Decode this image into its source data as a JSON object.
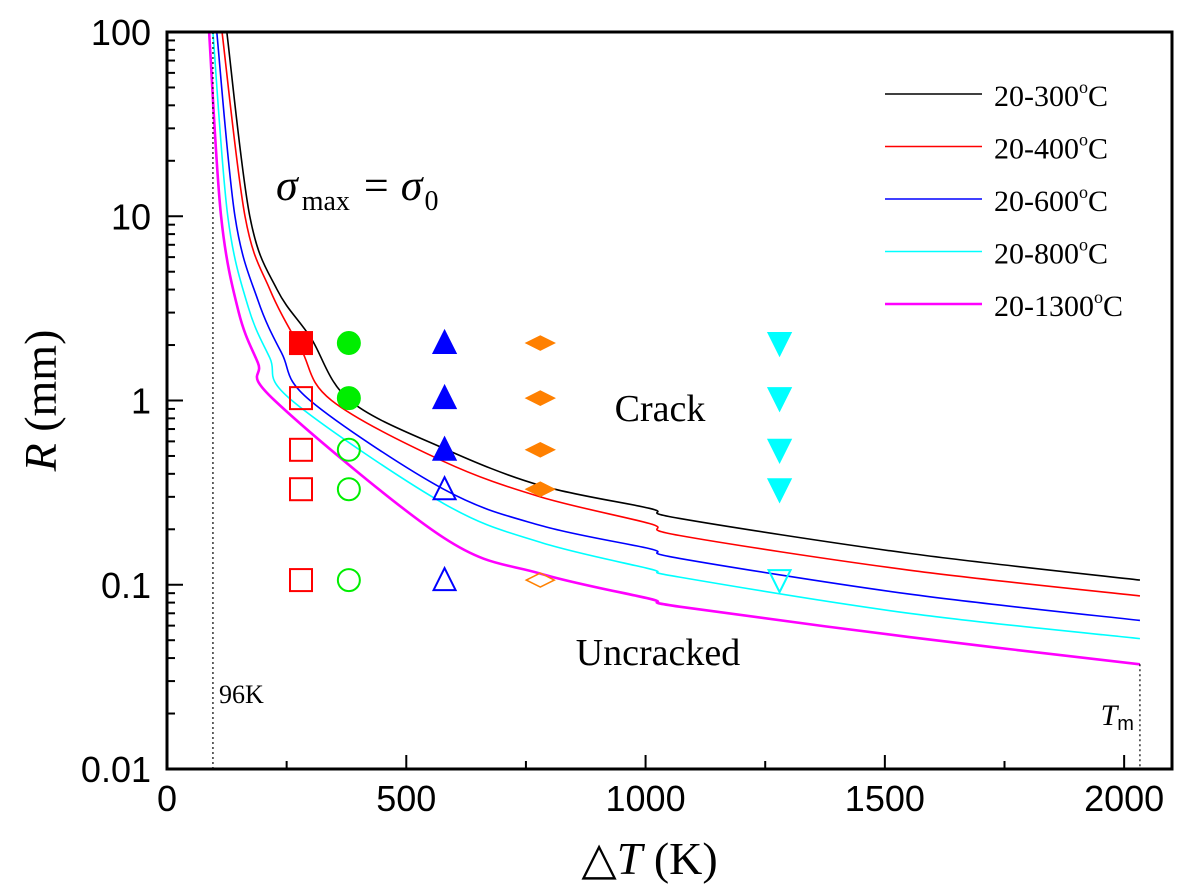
{
  "chart_data": {
    "type": "line",
    "title": "",
    "xlabel": {
      "prefix": "△",
      "var": "T",
      "unit": " (K)"
    },
    "ylabel": {
      "var": "R",
      "unit": " (mm)"
    },
    "xscale": "linear",
    "yscale": "log",
    "xlim": [
      0,
      2100
    ],
    "ylim": [
      0.01,
      100
    ],
    "x_ticks": [
      {
        "value": 0,
        "label": "0"
      },
      {
        "value": 500,
        "label": "500"
      },
      {
        "value": 1000,
        "label": "1000"
      },
      {
        "value": 1500,
        "label": "1500"
      },
      {
        "value": 2000,
        "label": "2000"
      }
    ],
    "x_minor_ticks": [
      250,
      750,
      1250,
      1750
    ],
    "y_ticks": [
      {
        "value": 100,
        "label": "100"
      },
      {
        "value": 10,
        "label": "10"
      },
      {
        "value": 1,
        "label": "1"
      },
      {
        "value": 0.1,
        "label": "0.1"
      },
      {
        "value": 0.01,
        "label": "0.01"
      }
    ],
    "grid": false,
    "legend_position": "top-right",
    "series": [
      {
        "name": "20-300°C",
        "label_main": "20-300",
        "label_unit": "C",
        "color": "#000000",
        "points": [
          [
            125,
            100
          ],
          [
            173,
            10
          ],
          [
            230,
            4
          ],
          [
            300,
            2.2
          ],
          [
            382,
            1
          ],
          [
            578,
            0.55
          ],
          [
            780,
            0.346
          ],
          [
            1008,
            0.26
          ],
          [
            1071,
            0.229
          ],
          [
            1551,
            0.148
          ],
          [
            2033,
            0.106
          ]
        ]
      },
      {
        "name": "20-400°C",
        "label_main": "20-400",
        "label_unit": "C",
        "color": "#ff0000",
        "points": [
          [
            115,
            100
          ],
          [
            163,
            10
          ],
          [
            215,
            4
          ],
          [
            280,
            1.9
          ],
          [
            344,
            1
          ],
          [
            578,
            0.467
          ],
          [
            780,
            0.3
          ],
          [
            1008,
            0.215
          ],
          [
            1071,
            0.185
          ],
          [
            1551,
            0.12
          ],
          [
            2033,
            0.087
          ]
        ]
      },
      {
        "name": "20-600°C",
        "label_main": "20-600",
        "label_unit": "C",
        "color": "#0000ff",
        "points": [
          [
            104,
            100
          ],
          [
            142,
            10
          ],
          [
            190,
            3.5
          ],
          [
            240,
            1.8
          ],
          [
            299,
            1
          ],
          [
            578,
            0.33
          ],
          [
            780,
            0.21
          ],
          [
            1008,
            0.157
          ],
          [
            1071,
            0.139
          ],
          [
            1551,
            0.089
          ],
          [
            2033,
            0.064
          ]
        ]
      },
      {
        "name": "20-800°C",
        "label_main": "20-800",
        "label_unit": "C",
        "color": "#00ffff",
        "points": [
          [
            96,
            100
          ],
          [
            127,
            10
          ],
          [
            170,
            3.2
          ],
          [
            215,
            1.7
          ],
          [
            261,
            1
          ],
          [
            578,
            0.276
          ],
          [
            780,
            0.17
          ],
          [
            1008,
            0.122
          ],
          [
            1071,
            0.11
          ],
          [
            1551,
            0.07
          ],
          [
            2033,
            0.051
          ]
        ]
      },
      {
        "name": "20-1300°C",
        "label_main": "20-1300",
        "label_unit": "C",
        "color": "#ff00ff",
        "points": [
          [
            88,
            100
          ],
          [
            113,
            10
          ],
          [
            150,
            3
          ],
          [
            190,
            1.6
          ],
          [
            225,
            1
          ],
          [
            578,
            0.18
          ],
          [
            780,
            0.115
          ],
          [
            1008,
            0.084
          ],
          [
            1071,
            0.076
          ],
          [
            1551,
            0.052
          ],
          [
            2033,
            0.037
          ]
        ]
      }
    ],
    "markers": [
      {
        "group": "20-300°C",
        "shape": "square",
        "color": "#ff0000",
        "x": 280,
        "points": [
          {
            "y": 2.05,
            "filled": true
          },
          {
            "y": 1.03,
            "filled": false
          },
          {
            "y": 0.54,
            "filled": false
          },
          {
            "y": 0.33,
            "filled": false
          },
          {
            "y": 0.106,
            "filled": false
          }
        ]
      },
      {
        "group": "20-400°C",
        "shape": "circle",
        "color": "#00ee00",
        "x": 380,
        "points": [
          {
            "y": 2.05,
            "filled": true
          },
          {
            "y": 1.03,
            "filled": true
          },
          {
            "y": 0.54,
            "filled": false
          },
          {
            "y": 0.33,
            "filled": false
          },
          {
            "y": 0.106,
            "filled": false
          }
        ]
      },
      {
        "group": "20-600°C",
        "shape": "triangle-up",
        "color": "#0000ff",
        "x": 580,
        "points": [
          {
            "y": 2.05,
            "filled": true
          },
          {
            "y": 1.03,
            "filled": true
          },
          {
            "y": 0.54,
            "filled": true
          },
          {
            "y": 0.33,
            "filled": false
          },
          {
            "y": 0.106,
            "filled": false
          }
        ]
      },
      {
        "group": "20-800°C",
        "shape": "diamond",
        "color": "#ff8000",
        "x": 780,
        "points": [
          {
            "y": 2.05,
            "filled": true
          },
          {
            "y": 1.03,
            "filled": true
          },
          {
            "y": 0.54,
            "filled": true
          },
          {
            "y": 0.33,
            "filled": true
          },
          {
            "y": 0.106,
            "filled": false
          }
        ]
      },
      {
        "group": "20-1300°C",
        "shape": "triangle-down",
        "color": "#00ffff",
        "x": 1280,
        "points": [
          {
            "y": 2.05,
            "filled": true
          },
          {
            "y": 1.03,
            "filled": true
          },
          {
            "y": 0.54,
            "filled": true
          },
          {
            "y": 0.33,
            "filled": true
          },
          {
            "y": 0.106,
            "filled": false
          }
        ]
      }
    ],
    "reference_lines": [
      {
        "x": 96,
        "label": "96K",
        "style": "dotted"
      },
      {
        "x": 2033,
        "label_var": "T",
        "label_sub": "m",
        "style": "dotted"
      }
    ],
    "annotations": {
      "equation": {
        "lhs_var": "σ",
        "lhs_sub": "max",
        "op": "=",
        "rhs_var": "σ",
        "rhs_sub": "0",
        "x": 230,
        "y": 9
      },
      "crack": {
        "text": "Crack",
        "x": 1005,
        "y": 1.0
      },
      "uncracked": {
        "text": "Uncracked",
        "x": 1000,
        "y": 0.032
      }
    }
  }
}
